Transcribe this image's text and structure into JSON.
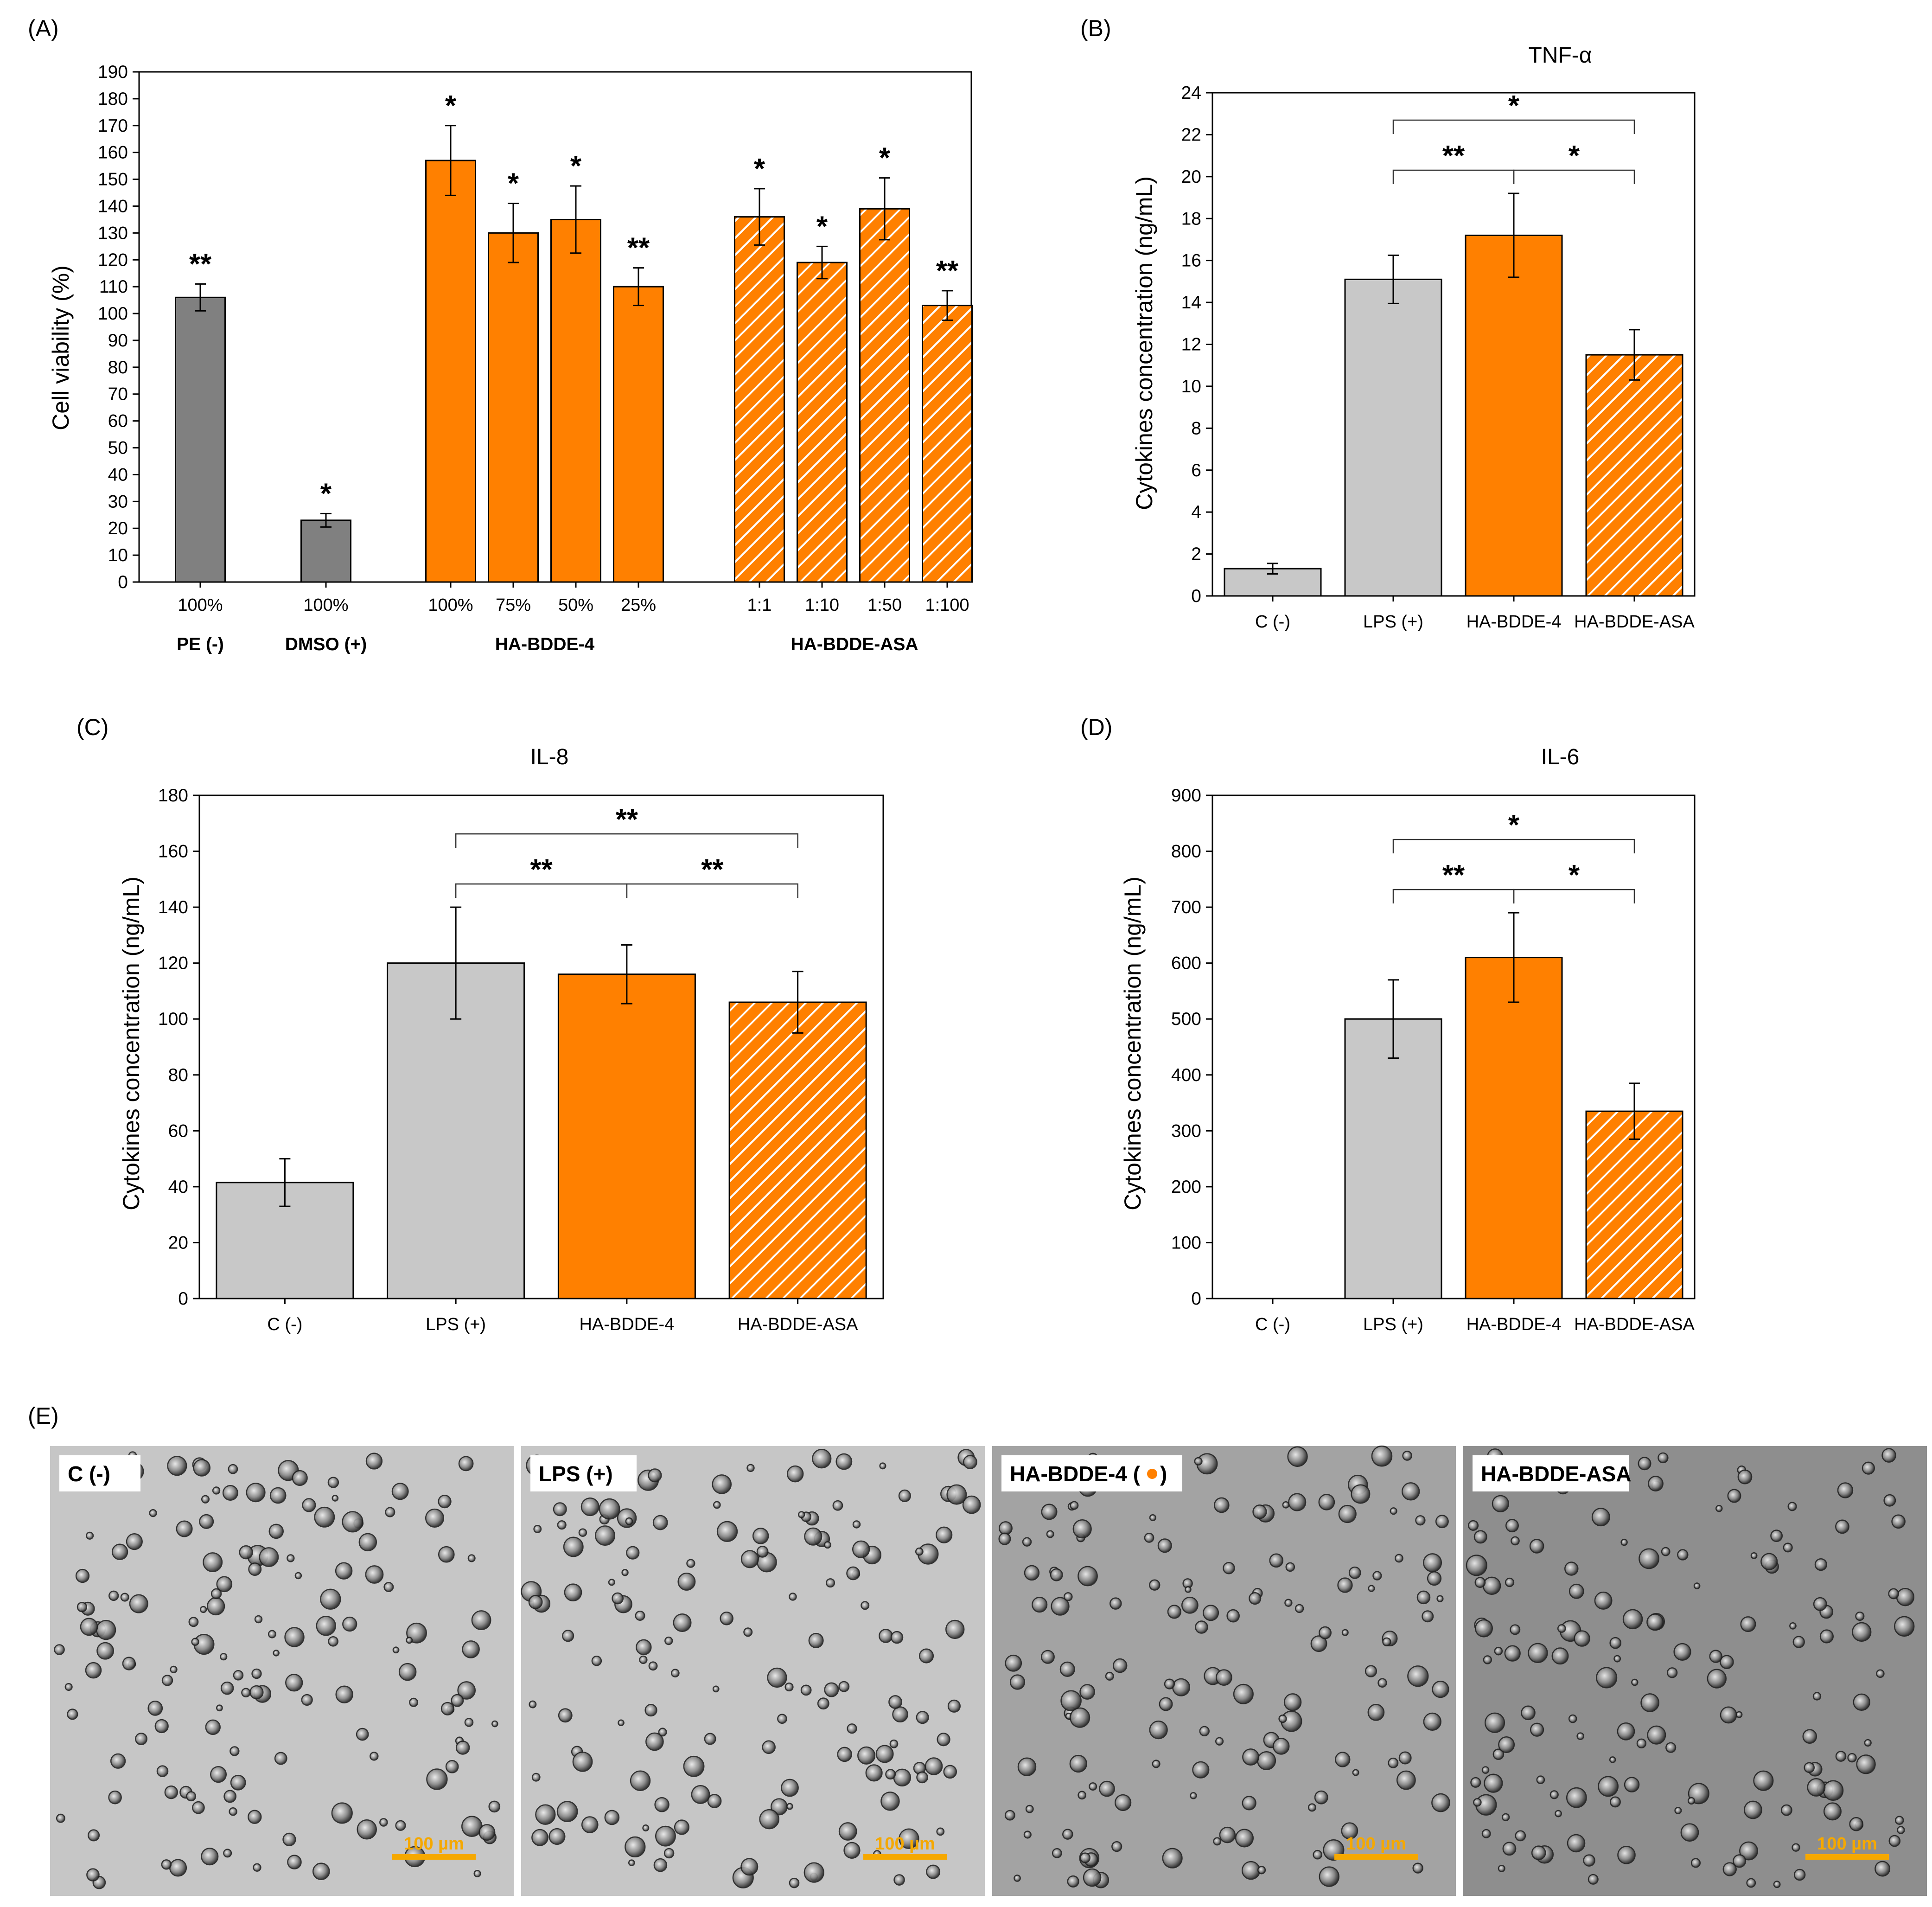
{
  "colors": {
    "gray_dark": "#808080",
    "gray_light": "#c8c8c8",
    "orange": "#ff8000",
    "hatch_line": "#ffffff",
    "scale_bar": "#f5a800",
    "axis": "#000000"
  },
  "chart_data": [
    {
      "panel": "(A)",
      "type": "bar",
      "title": "",
      "xlabel": "",
      "ylabel": "Cell viability (%)",
      "ylim": [
        0,
        190
      ],
      "yticks": [
        0,
        10,
        20,
        30,
        40,
        50,
        60,
        70,
        80,
        90,
        100,
        110,
        120,
        130,
        140,
        150,
        160,
        170,
        180,
        190
      ],
      "bars": [
        {
          "label": "100%",
          "group": "PE (-)",
          "value": 106,
          "error": 5,
          "sig": "**",
          "style": "gray_dark"
        },
        {
          "label": "100%",
          "group": "DMSO (+)",
          "value": 23,
          "error": 2.5,
          "sig": "*",
          "style": "gray_dark"
        },
        {
          "label": "100%",
          "group": "HA-BDDE-4",
          "value": 157,
          "error": 13,
          "sig": "*",
          "style": "orange"
        },
        {
          "label": "75%",
          "group": "HA-BDDE-4",
          "value": 130,
          "error": 11,
          "sig": "*",
          "style": "orange"
        },
        {
          "label": "50%",
          "group": "HA-BDDE-4",
          "value": 135,
          "error": 12.5,
          "sig": "*",
          "style": "orange"
        },
        {
          "label": "25%",
          "group": "HA-BDDE-4",
          "value": 110,
          "error": 7,
          "sig": "**",
          "style": "orange"
        },
        {
          "label": "1:1",
          "group": "HA-BDDE-ASA",
          "value": 136,
          "error": 10.5,
          "sig": "*",
          "style": "hatched"
        },
        {
          "label": "1:10",
          "group": "HA-BDDE-ASA",
          "value": 119,
          "error": 6,
          "sig": "*",
          "style": "hatched"
        },
        {
          "label": "1:50",
          "group": "HA-BDDE-ASA",
          "value": 139,
          "error": 11.5,
          "sig": "*",
          "style": "hatched"
        },
        {
          "label": "1:100",
          "group": "HA-BDDE-ASA",
          "value": 103,
          "error": 5.5,
          "sig": "**",
          "style": "hatched"
        }
      ],
      "groups": [
        "PE (-)",
        "DMSO (+)",
        "HA-BDDE-4",
        "HA-BDDE-ASA"
      ]
    },
    {
      "panel": "(B)",
      "type": "bar",
      "title": "TNF-α",
      "xlabel": "",
      "ylabel": "Cytokines concentration (ng/mL)",
      "ylim": [
        0,
        24
      ],
      "yticks": [
        0,
        2,
        4,
        6,
        8,
        10,
        12,
        14,
        16,
        18,
        20,
        22,
        24
      ],
      "categories": [
        "C (-)",
        "LPS (+)",
        "HA-BDDE-4",
        "HA-BDDE-ASA"
      ],
      "values": [
        1.3,
        15.1,
        17.2,
        11.5
      ],
      "errors": [
        0.25,
        1.15,
        2.0,
        1.2
      ],
      "styles": [
        "gray_light",
        "gray_light",
        "orange",
        "hatched"
      ],
      "brackets": [
        {
          "from": 1,
          "to": 3,
          "level": 1,
          "sig": "*"
        },
        {
          "from": 1,
          "to": 2,
          "level": 0,
          "sig": "**"
        },
        {
          "from": 2,
          "to": 3,
          "level": 0,
          "sig": "*"
        }
      ]
    },
    {
      "panel": "(C)",
      "type": "bar",
      "title": "IL-8",
      "xlabel": "",
      "ylabel": "Cytokines concentration (ng/mL)",
      "ylim": [
        0,
        180
      ],
      "yticks": [
        0,
        20,
        40,
        60,
        80,
        100,
        120,
        140,
        160,
        180
      ],
      "categories": [
        "C (-)",
        "LPS (+)",
        "HA-BDDE-4",
        "HA-BDDE-ASA"
      ],
      "values": [
        41.5,
        120,
        116,
        106
      ],
      "errors": [
        8.5,
        20,
        10.5,
        11
      ],
      "styles": [
        "gray_light",
        "gray_light",
        "orange",
        "hatched"
      ],
      "brackets": [
        {
          "from": 1,
          "to": 3,
          "level": 1,
          "sig": "**"
        },
        {
          "from": 1,
          "to": 2,
          "level": 0,
          "sig": "**"
        },
        {
          "from": 2,
          "to": 3,
          "level": 0,
          "sig": "**"
        }
      ]
    },
    {
      "panel": "(D)",
      "type": "bar",
      "title": "IL-6",
      "xlabel": "",
      "ylabel": "Cytokines concentration (ng/mL)",
      "ylim": [
        0,
        900
      ],
      "yticks": [
        0,
        100,
        200,
        300,
        400,
        500,
        600,
        700,
        800,
        900
      ],
      "categories": [
        "C (-)",
        "LPS (+)",
        "HA-BDDE-4",
        "HA-BDDE-ASA"
      ],
      "values": [
        0,
        500,
        610,
        335
      ],
      "errors": [
        0,
        70,
        80,
        50
      ],
      "styles": [
        "gray_light",
        "gray_light",
        "orange",
        "hatched"
      ],
      "brackets": [
        {
          "from": 1,
          "to": 3,
          "level": 1,
          "sig": "*"
        },
        {
          "from": 1,
          "to": 2,
          "level": 0,
          "sig": "**"
        },
        {
          "from": 2,
          "to": 3,
          "level": 0,
          "sig": "*"
        }
      ]
    }
  ],
  "micrographs": {
    "panel": "(E)",
    "scale_label": "100 µm",
    "tiles": [
      {
        "label": "C (-)",
        "marker": false,
        "tone": "light"
      },
      {
        "label": "LPS (+)",
        "marker": false,
        "tone": "light"
      },
      {
        "label": "HA-BDDE-4 (",
        "label_end": ")",
        "marker": true,
        "marker_color": "#ff8000",
        "tone": "mid"
      },
      {
        "label": "HA-BDDE-ASA",
        "marker": false,
        "tone": "dark"
      }
    ]
  }
}
